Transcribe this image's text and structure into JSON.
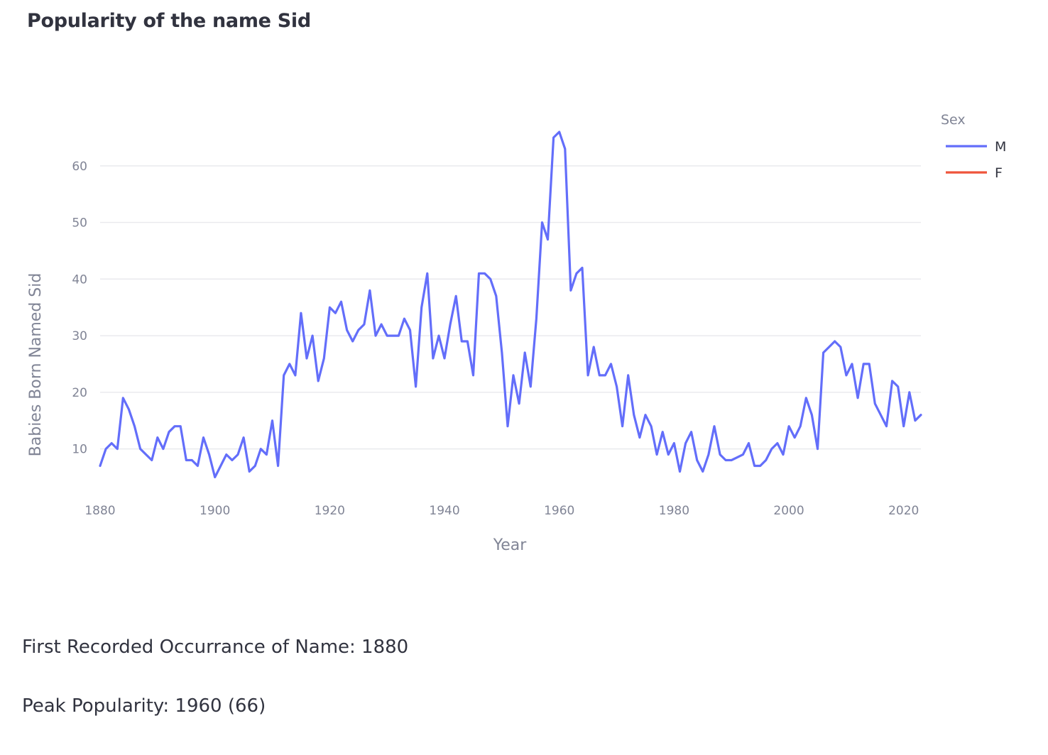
{
  "page": {
    "title": "Popularity of the name Sid",
    "first_label": "First Recorded Occurrance of Name: 1880",
    "peak_label": "Peak Popularity: 1960 (66)"
  },
  "chart_data": {
    "type": "line",
    "title": "",
    "xlabel": "Year",
    "ylabel": "Babies Born Named Sid",
    "xlim": [
      1880,
      2023
    ],
    "ylim": [
      1.8,
      69.5
    ],
    "xticks": [
      1880,
      1900,
      1920,
      1940,
      1960,
      1980,
      2000,
      2020
    ],
    "yticks": [
      10,
      20,
      30,
      40,
      50,
      60
    ],
    "grid": true,
    "legend": {
      "title": "Sex",
      "placement": "top-right"
    },
    "series": [
      {
        "name": "M",
        "color": "#636efa",
        "x": [
          1880,
          1881,
          1882,
          1883,
          1884,
          1885,
          1886,
          1887,
          1888,
          1889,
          1890,
          1891,
          1892,
          1893,
          1894,
          1895,
          1896,
          1897,
          1898,
          1899,
          1900,
          1901,
          1902,
          1903,
          1904,
          1905,
          1906,
          1907,
          1908,
          1909,
          1910,
          1911,
          1912,
          1913,
          1914,
          1915,
          1916,
          1917,
          1918,
          1919,
          1920,
          1921,
          1922,
          1923,
          1924,
          1925,
          1926,
          1927,
          1928,
          1929,
          1930,
          1931,
          1932,
          1933,
          1934,
          1935,
          1936,
          1937,
          1938,
          1939,
          1940,
          1941,
          1942,
          1943,
          1944,
          1945,
          1946,
          1947,
          1948,
          1949,
          1950,
          1951,
          1952,
          1953,
          1954,
          1955,
          1956,
          1957,
          1958,
          1959,
          1960,
          1961,
          1962,
          1963,
          1964,
          1965,
          1966,
          1967,
          1968,
          1969,
          1970,
          1971,
          1972,
          1973,
          1974,
          1975,
          1976,
          1977,
          1978,
          1979,
          1980,
          1981,
          1982,
          1983,
          1984,
          1985,
          1986,
          1987,
          1988,
          1989,
          1990,
          1991,
          1992,
          1993,
          1994,
          1995,
          1996,
          1997,
          1998,
          1999,
          2000,
          2001,
          2002,
          2003,
          2004,
          2005,
          2006,
          2007,
          2008,
          2009,
          2010,
          2011,
          2012,
          2013,
          2014,
          2015,
          2016,
          2017,
          2018,
          2019,
          2020,
          2021,
          2022,
          2023
        ],
        "values": [
          7,
          10,
          11,
          10,
          19,
          17,
          14,
          10,
          9,
          8,
          12,
          10,
          13,
          14,
          14,
          8,
          8,
          7,
          12,
          9,
          5,
          7,
          9,
          8,
          9,
          12,
          6,
          7,
          10,
          9,
          15,
          7,
          23,
          25,
          23,
          34,
          26,
          30,
          22,
          26,
          35,
          34,
          36,
          31,
          29,
          31,
          32,
          38,
          30,
          32,
          30,
          30,
          30,
          33,
          31,
          21,
          35,
          41,
          26,
          30,
          26,
          32,
          37,
          29,
          29,
          23,
          41,
          41,
          40,
          37,
          27,
          14,
          23,
          18,
          27,
          21,
          33,
          50,
          47,
          65,
          66,
          63,
          38,
          41,
          42,
          23,
          28,
          23,
          23,
          25,
          21,
          14,
          23,
          16,
          12,
          16,
          14,
          9,
          13,
          9,
          11,
          6,
          11,
          13,
          8,
          6,
          9,
          14,
          9,
          8,
          8,
          8.5,
          9,
          11,
          7,
          7,
          8,
          10,
          11,
          9,
          14,
          12,
          14,
          19,
          16,
          10,
          27,
          28,
          29,
          28,
          23,
          25,
          19,
          25,
          25,
          18,
          16,
          14,
          22,
          21,
          14,
          20,
          15,
          16
        ]
      },
      {
        "name": "F",
        "color": "#ef553b",
        "x": [],
        "values": []
      }
    ]
  }
}
